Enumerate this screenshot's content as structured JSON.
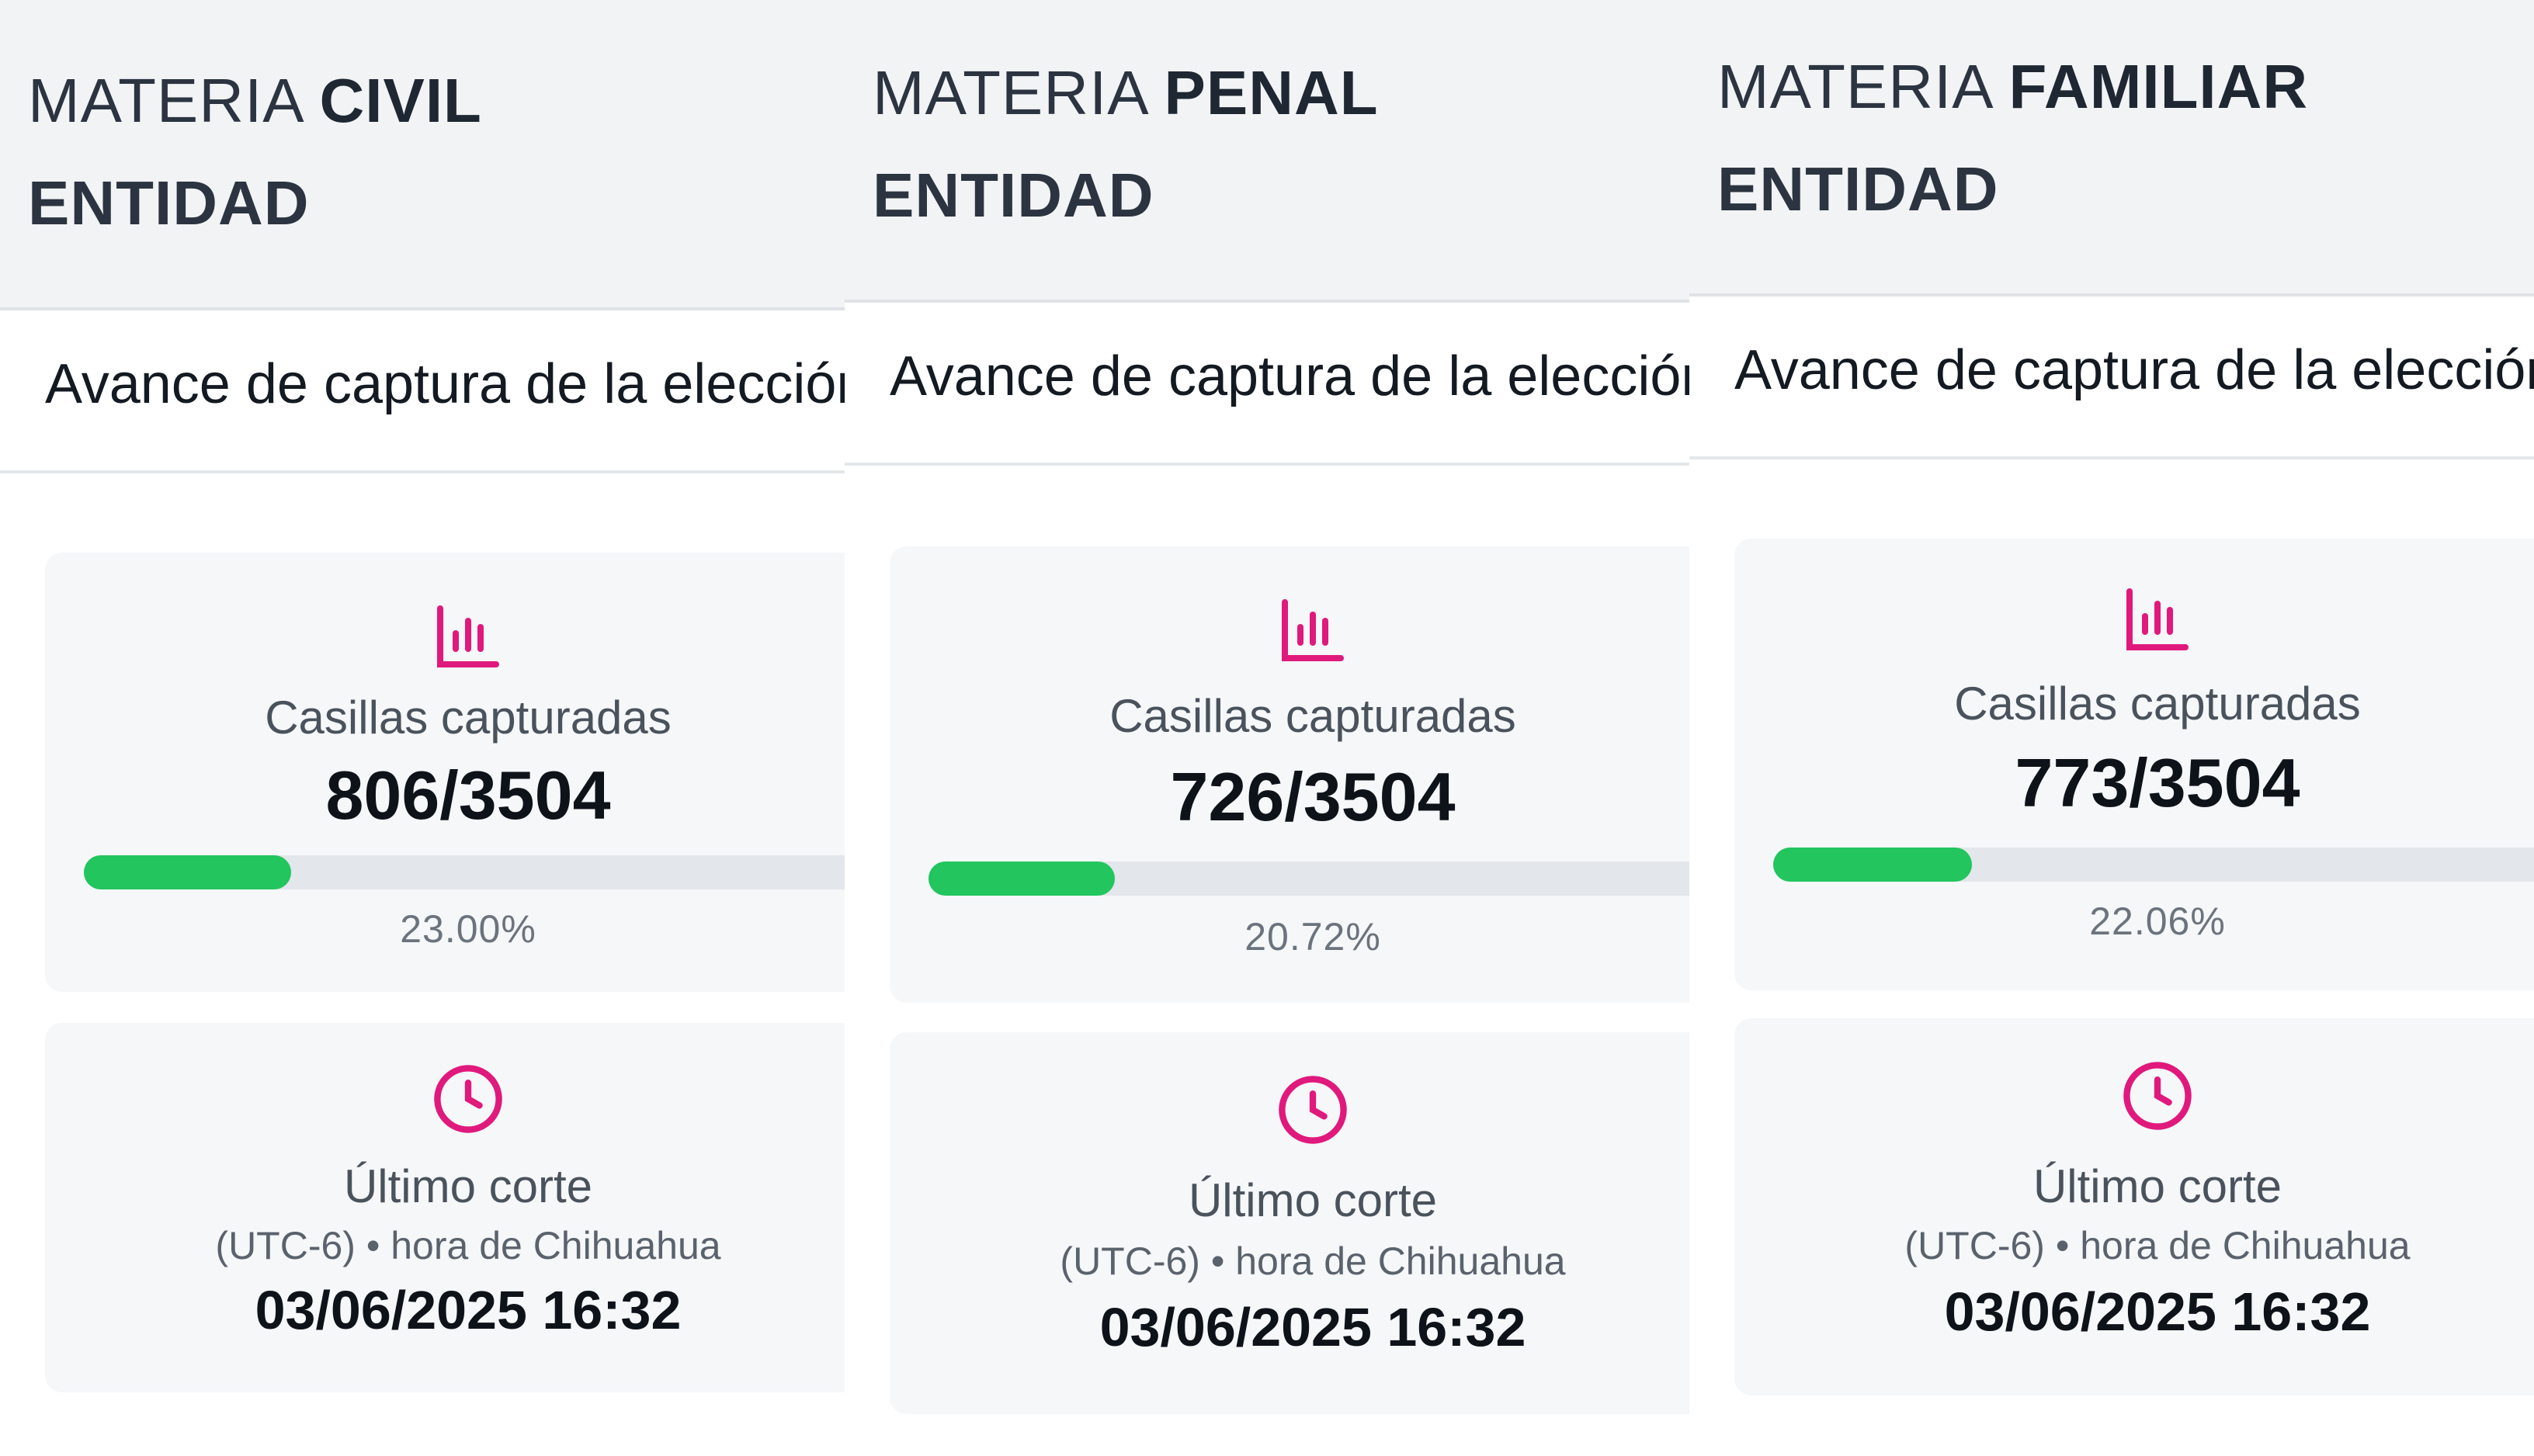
{
  "panels": [
    {
      "title_prefix": "MATERIA",
      "materia": "CIVIL",
      "entity_label": "ENTIDAD",
      "subtitle": "Avance de captura de la elección",
      "progress_label": "Casillas capturadas",
      "captured": "806/3504",
      "percent": "23.00%",
      "progress_fraction": 0.23,
      "time_label": "Último corte",
      "timezone": "(UTC-6) • hora de Chihuahua",
      "cutoff": "03/06/2025 16:32"
    },
    {
      "title_prefix": "MATERIA",
      "materia": "PENAL",
      "entity_label": "ENTIDAD",
      "subtitle": "Avance de captura de la elección",
      "progress_label": "Casillas capturadas",
      "captured": "726/3504",
      "percent": "20.72%",
      "progress_fraction": 0.2072,
      "time_label": "Último corte",
      "timezone": "(UTC-6) • hora de Chihuahua",
      "cutoff": "03/06/2025 16:32"
    },
    {
      "title_prefix": "MATERIA",
      "materia": "FAMILIAR",
      "entity_label": "ENTIDAD",
      "subtitle": "Avance de captura de la elección",
      "progress_label": "Casillas capturadas",
      "captured": "773/3504",
      "percent": "22.06%",
      "progress_fraction": 0.2206,
      "time_label": "Último corte",
      "timezone": "(UTC-6) • hora de Chihuahua",
      "cutoff": "03/06/2025 16:32"
    }
  ],
  "icons": {
    "progress": "bar-chart-icon",
    "time": "clock-icon"
  },
  "colors": {
    "accent_icon": "#e0197d",
    "progress_fill": "#22c55e",
    "progress_track": "#e3e6ea",
    "header_bg": "#f1f3f5"
  }
}
